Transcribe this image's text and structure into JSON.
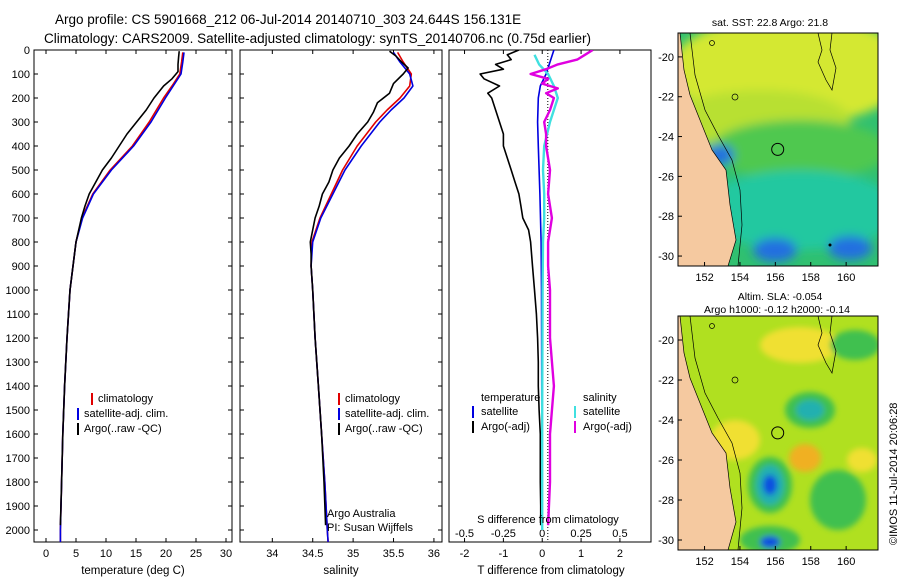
{
  "title": {
    "line1": "Argo profile: CS 5901668_212 06-Jul-2014 20140710_303 24.644S 156.131E",
    "line2": "Climatology: CARS2009. Satellite-adjusted climatology: synTS_20140706.nc (0.75d earlier)"
  },
  "side_label": "©IMOS 11-Jul-2014 20:06:28",
  "chart_data": [
    {
      "type": "line",
      "id": "temperature",
      "xlabel": "temperature (deg C)",
      "ylabel": "",
      "xlim": [
        -2,
        31
      ],
      "ylim": [
        2050,
        0
      ],
      "xticks": [
        "0",
        "5",
        "10",
        "15",
        "20",
        "25",
        "30"
      ],
      "xtick_values": [
        0,
        5,
        10,
        15,
        20,
        25,
        30
      ],
      "yticks": [
        "0",
        "100",
        "200",
        "300",
        "400",
        "500",
        "600",
        "700",
        "800",
        "900",
        "1000",
        "1100",
        "1200",
        "1300",
        "1400",
        "1500",
        "1600",
        "1700",
        "1800",
        "1900",
        "2000"
      ],
      "ytick_values": [
        0,
        100,
        200,
        300,
        400,
        500,
        600,
        700,
        800,
        900,
        1000,
        1100,
        1200,
        1300,
        1400,
        1500,
        1600,
        1700,
        1800,
        1900,
        2000
      ],
      "legend": [
        "climatology",
        "satellite-adj. clim.",
        "Argo(..raw -QC)"
      ],
      "series": [
        {
          "name": "climatology",
          "color": "#e00000",
          "depth": [
            10,
            50,
            100,
            150,
            200,
            300,
            400,
            500,
            600,
            700,
            800,
            1000,
            1200,
            1400,
            1600,
            1800,
            2000,
            2050
          ],
          "values": [
            22.8,
            22.6,
            22.3,
            21.0,
            19.6,
            17.2,
            14.4,
            10.7,
            7.8,
            6.0,
            5.0,
            4.0,
            3.5,
            3.1,
            2.8,
            2.6,
            2.4,
            2.4
          ]
        },
        {
          "name": "satellite-adj. clim.",
          "color": "#0000e0",
          "depth": [
            10,
            50,
            100,
            150,
            200,
            300,
            400,
            500,
            600,
            700,
            800,
            1000,
            1200,
            1400,
            1600,
            1800,
            2000,
            2050
          ],
          "values": [
            23.0,
            22.8,
            22.5,
            21.2,
            19.9,
            17.5,
            14.6,
            10.9,
            7.9,
            6.1,
            5.0,
            4.0,
            3.5,
            3.1,
            2.8,
            2.6,
            2.4,
            2.4
          ]
        },
        {
          "name": "Argo(..raw -QC)",
          "color": "#000000",
          "depth": [
            5,
            30,
            60,
            90,
            120,
            150,
            200,
            250,
            300,
            350,
            400,
            450,
            500,
            550,
            600,
            650,
            700,
            800,
            900,
            1000,
            1200,
            1400,
            1600,
            1800,
            1980
          ],
          "values": [
            22.2,
            22.1,
            22.0,
            22.0,
            21.0,
            19.6,
            18.0,
            16.7,
            15.1,
            13.5,
            12.2,
            10.9,
            9.4,
            8.3,
            7.2,
            6.5,
            5.9,
            5.0,
            4.5,
            4.0,
            3.5,
            3.1,
            2.8,
            2.6,
            2.4
          ]
        }
      ]
    },
    {
      "type": "line",
      "id": "salinity",
      "xlabel": "salinity",
      "ylabel": "",
      "xlim": [
        33.6,
        36.1
      ],
      "ylim": [
        2050,
        0
      ],
      "xticks": [
        "34",
        "34.5",
        "35",
        "35.5",
        "36"
      ],
      "xtick_values": [
        34,
        34.5,
        35,
        35.5,
        36
      ],
      "legend": [
        "climatology",
        "satellite-adj. clim.",
        "Argo(..raw -QC)"
      ],
      "annotation": [
        "Argo Australia",
        "PI: Susan Wijffels"
      ],
      "series": [
        {
          "name": "climatology",
          "color": "#e00000",
          "depth": [
            10,
            50,
            100,
            150,
            200,
            250,
            300,
            400,
            500,
            600,
            700,
            800,
            900,
            1000,
            1200,
            1400,
            1600,
            1800,
            2000,
            2050
          ],
          "values": [
            35.55,
            35.62,
            35.72,
            35.7,
            35.58,
            35.42,
            35.28,
            35.05,
            34.87,
            34.73,
            34.59,
            34.49,
            34.48,
            34.5,
            34.53,
            34.57,
            34.61,
            34.65,
            34.68,
            34.69
          ]
        },
        {
          "name": "satellite-adj. clim.",
          "color": "#0000e0",
          "depth": [
            10,
            50,
            100,
            150,
            200,
            250,
            300,
            400,
            500,
            600,
            700,
            800,
            900,
            1000,
            1200,
            1400,
            1600,
            1800,
            2000,
            2050
          ],
          "values": [
            35.5,
            35.58,
            35.7,
            35.74,
            35.63,
            35.47,
            35.33,
            35.1,
            34.9,
            34.75,
            34.6,
            34.5,
            34.48,
            34.5,
            34.53,
            34.57,
            34.61,
            34.65,
            34.68,
            34.69
          ]
        },
        {
          "name": "Argo(..raw -QC)",
          "color": "#000000",
          "depth": [
            5,
            25,
            50,
            75,
            100,
            140,
            180,
            220,
            260,
            300,
            350,
            400,
            450,
            500,
            550,
            600,
            650,
            700,
            750,
            800,
            850,
            900,
            1000,
            1200,
            1400,
            1600,
            1800,
            1980
          ],
          "values": [
            35.45,
            35.53,
            35.6,
            35.68,
            35.62,
            35.5,
            35.45,
            35.3,
            35.25,
            35.18,
            35.05,
            34.95,
            34.83,
            34.75,
            34.7,
            34.62,
            34.58,
            34.53,
            34.5,
            34.47,
            34.48,
            34.48,
            34.5,
            34.53,
            34.57,
            34.61,
            34.64,
            34.66
          ]
        }
      ]
    },
    {
      "type": "line",
      "id": "difference",
      "xlabel": "T difference from climatology",
      "xlabel_top": "S difference from climatology",
      "xlim": [
        -2.4,
        2.8
      ],
      "ylim": [
        2050,
        0
      ],
      "xticks": [
        "-2",
        "-1",
        "0",
        "1",
        "2"
      ],
      "xtick_values": [
        -2,
        -1,
        0,
        1,
        2
      ],
      "xticks_top": [
        "-0.5",
        "-0.25",
        "0",
        "0.25",
        "0.5"
      ],
      "xtick_top_positions": [
        -2,
        -1,
        0,
        1,
        2
      ],
      "legend_left_title": "temperature",
      "legend_right_title": "salinity",
      "legend": [
        "satellite",
        "Argo(-adj)",
        "satellite",
        "Argo(-adj)"
      ],
      "series": [
        {
          "name": "temperature satellite",
          "color": "#0000e0",
          "depth": [
            0,
            50,
            100,
            150,
            200,
            300,
            400,
            500,
            600,
            800,
            1000,
            1500,
            2000
          ],
          "values": [
            0.3,
            0.2,
            0.1,
            -0.05,
            -0.1,
            -0.12,
            -0.1,
            -0.08,
            -0.06,
            -0.03,
            -0.02,
            -0.01,
            0.0
          ]
        },
        {
          "name": "temperature Argo(-adj)",
          "color": "#000000",
          "depth": [
            0,
            20,
            40,
            60,
            80,
            100,
            120,
            150,
            180,
            200,
            250,
            300,
            350,
            400,
            450,
            500,
            550,
            600,
            650,
            700,
            750,
            800,
            900,
            1000,
            1100,
            1200,
            1300,
            1400,
            1500,
            1600,
            1700,
            1800,
            1900,
            1980
          ],
          "values": [
            -0.6,
            -0.9,
            -0.8,
            -1.2,
            -1.0,
            -1.6,
            -1.5,
            -1.1,
            -1.4,
            -1.3,
            -1.2,
            -1.1,
            -1.0,
            -1.0,
            -0.9,
            -0.8,
            -0.7,
            -0.6,
            -0.55,
            -0.5,
            -0.35,
            -0.3,
            -0.25,
            -0.2,
            -0.15,
            -0.12,
            -0.1,
            -0.1,
            -0.08,
            -0.05,
            -0.05,
            -0.05,
            -0.04,
            -0.04
          ]
        },
        {
          "name": "salinity satellite",
          "color": "#40e0e0",
          "depth": [
            20,
            60,
            100,
            150,
            200,
            250,
            300,
            400,
            500,
            600,
            700,
            800,
            1000,
            1500,
            2000
          ],
          "values": [
            -0.2,
            -0.08,
            0.15,
            0.3,
            0.4,
            0.3,
            0.2,
            0.05,
            0.02,
            0.05,
            0.05,
            0.02,
            0.01,
            0.0,
            0.0
          ]
        },
        {
          "name": "salinity Argo(-adj)",
          "color": "#e000e0",
          "depth": [
            0,
            20,
            40,
            60,
            80,
            100,
            120,
            140,
            160,
            180,
            200,
            250,
            300,
            350,
            400,
            500,
            600,
            700,
            800,
            900,
            1000,
            1200,
            1400,
            1600,
            1800,
            1980
          ],
          "values": [
            1.3,
            1.1,
            0.9,
            0.4,
            0.1,
            -0.3,
            0.15,
            0.0,
            0.4,
            0.1,
            0.3,
            0.2,
            0.05,
            0.1,
            0.1,
            0.2,
            0.15,
            0.25,
            0.15,
            0.15,
            0.2,
            0.2,
            0.3,
            0.2,
            0.2,
            0.15
          ]
        }
      ]
    },
    {
      "type": "heatmap",
      "id": "sst-map",
      "title": "sat. SST: 22.8  Argo: 21.8",
      "xlim": [
        150.5,
        161.8
      ],
      "ylim": [
        -30.5,
        -18.8
      ],
      "xticks": [
        "152",
        "154",
        "156",
        "158",
        "160"
      ],
      "xtick_values": [
        152,
        154,
        156,
        158,
        160
      ],
      "yticks": [
        "-20",
        "-22",
        "-24",
        "-26",
        "-28",
        "-30"
      ],
      "ytick_values": [
        -20,
        -22,
        -24,
        -26,
        -28,
        -30
      ],
      "marker": {
        "lon": 156.131,
        "lat": -24.644
      },
      "colors": {
        "land": "#f5c9a0",
        "warm": "#d4e830",
        "mid": "#40c040",
        "cool": "#20c8a0",
        "cold": "#2070e0"
      }
    },
    {
      "type": "heatmap",
      "id": "sla-map",
      "title": "Altim. SLA: -0.054",
      "subtitle": "Argo h1000: -0.12  h2000: -0.14",
      "xlim": [
        150.5,
        161.8
      ],
      "ylim": [
        -30.5,
        -18.8
      ],
      "xticks": [
        "152",
        "154",
        "156",
        "158",
        "160"
      ],
      "xtick_values": [
        152,
        154,
        156,
        158,
        160
      ],
      "yticks": [
        "-20",
        "-22",
        "-24",
        "-26",
        "-28",
        "-30"
      ],
      "ytick_values": [
        -20,
        -22,
        -24,
        -26,
        -28,
        -30
      ],
      "marker": {
        "lon": 156.131,
        "lat": -24.644
      },
      "colors": {
        "land": "#f5c9a0",
        "base": "#b0e020",
        "high": "#f0e030",
        "peak": "#f0b020",
        "low": "#40c050",
        "lower": "#20b0b0",
        "lowest": "#1050e0"
      }
    }
  ]
}
